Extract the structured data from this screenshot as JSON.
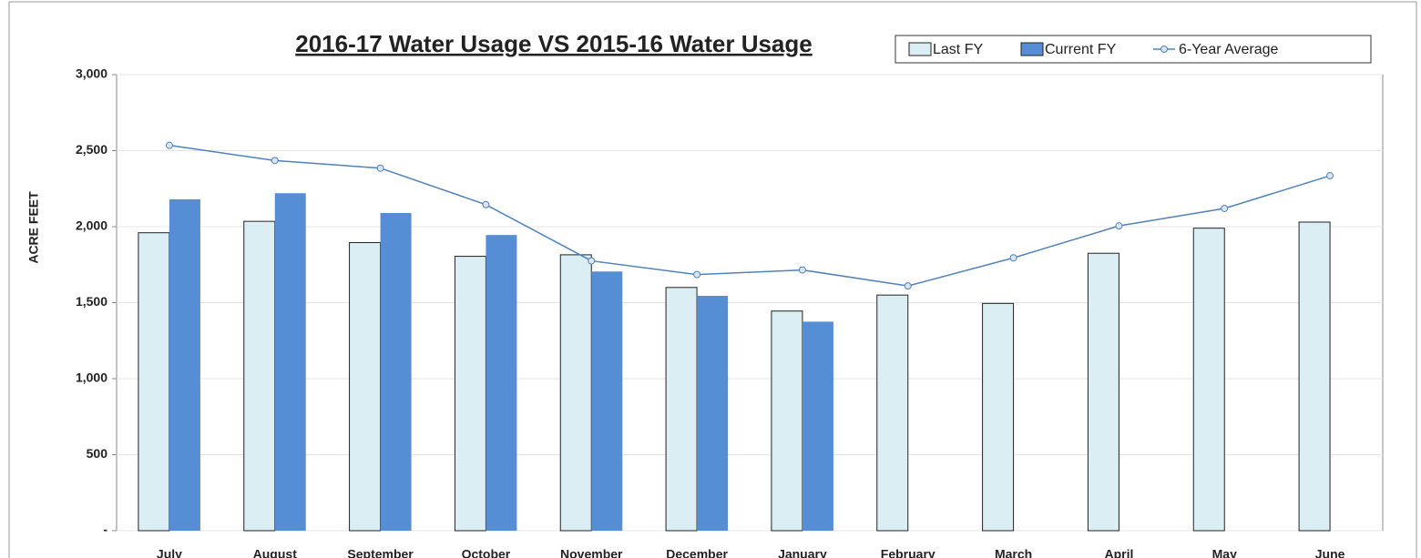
{
  "chart_data": {
    "type": "bar",
    "title": "2016-17 Water Usage VS 2015-16 Water Usage",
    "y_label": "ACRE FEET",
    "categories": [
      "July",
      "August",
      "September",
      "October",
      "November",
      "December",
      "January",
      "February",
      "March",
      "April",
      "May",
      "June"
    ],
    "series": [
      {
        "name": "Last FY",
        "type": "bar",
        "color": "#daeef3",
        "values": [
          1960,
          2035,
          1895,
          1805,
          1815,
          1600,
          1445,
          1550,
          1495,
          1825,
          1990,
          2030
        ]
      },
      {
        "name": "Current FY",
        "type": "bar",
        "color": "#558ed5",
        "values": [
          2180,
          2220,
          2090,
          1945,
          1705,
          1545,
          1375,
          null,
          null,
          null,
          null,
          null
        ]
      },
      {
        "name": "6-Year Average",
        "type": "line",
        "color": "#4f81bd",
        "values": [
          2535,
          2435,
          2385,
          2145,
          1775,
          1685,
          1715,
          1610,
          1795,
          2005,
          2120,
          2335
        ]
      }
    ],
    "ylim": [
      0,
      3000
    ],
    "yticks": [
      {
        "value": 0,
        "label": "-"
      },
      500,
      {
        "value": 1000,
        "label": "1,000"
      },
      {
        "value": 1500,
        "label": "1,500"
      },
      {
        "value": 2000,
        "label": "2,000"
      },
      {
        "value": 2500,
        "label": "2,500"
      },
      {
        "value": 3000,
        "label": "3,000"
      }
    ],
    "grid": true
  }
}
